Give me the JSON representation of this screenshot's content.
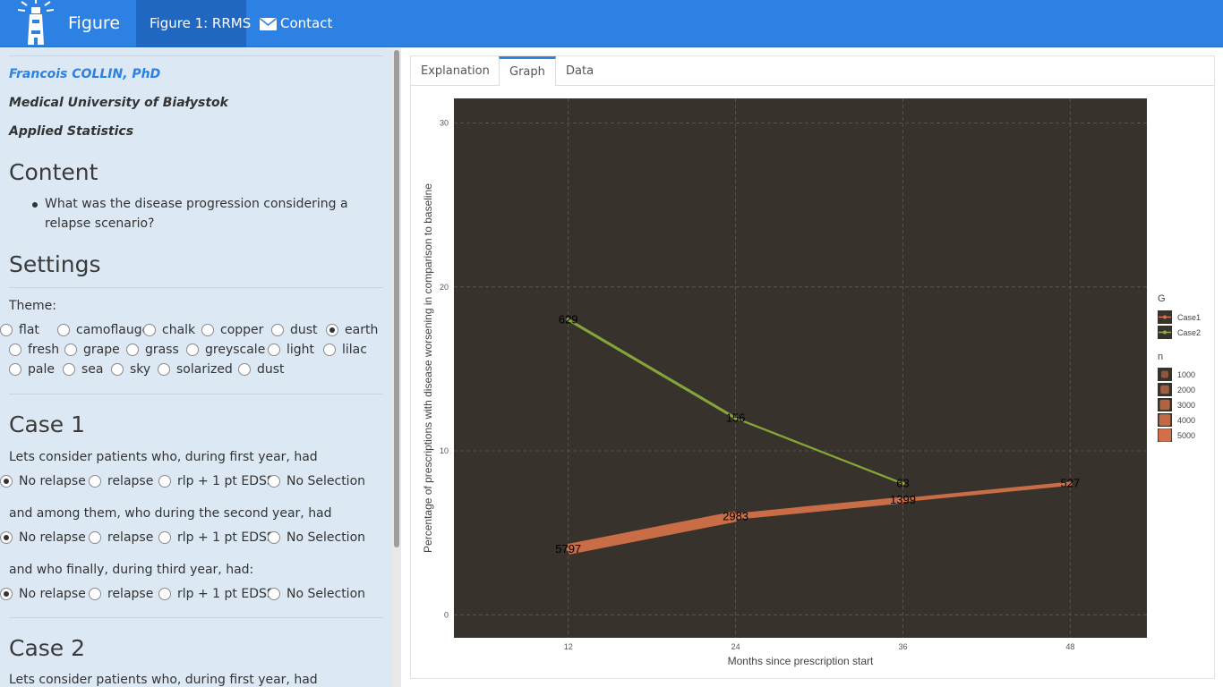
{
  "navbar": {
    "brand": "Figure",
    "active_tab": "Figure 1: RRMS",
    "contact": "Contact",
    "logo_icon": "lighthouse-icon",
    "mail_icon": "envelope-icon",
    "color": "#2c81e2"
  },
  "sidebar": {
    "author_name": "Francois COLLIN, PhD",
    "university": "Medical University of Białystok",
    "department": "Applied Statistics",
    "content_title": "Content",
    "content_item": "What was the disease progression considering a relapse scenario?",
    "settings_title": "Settings",
    "theme_label": "Theme:",
    "themes": [
      "flat",
      "camoflauge",
      "chalk",
      "copper",
      "dust",
      "earth",
      "fresh",
      "grape",
      "grass",
      "greyscale",
      "light",
      "lilac",
      "pale",
      "sea",
      "sky",
      "solarized",
      "dust"
    ],
    "selected_theme": "earth",
    "case1_title": "Case 1",
    "case1_q1": "Lets consider patients who, during first year, had",
    "case1_q2": "and among them, who during the second year, had",
    "case1_q3": "and who finally, during third year, had:",
    "case2_title": "Case 2",
    "case2_q1": "Lets consider patients who, during first year, had",
    "options": [
      "No relapse",
      "relapse",
      "rlp + 1 pt EDSS",
      "No Selection"
    ],
    "selected_option": "No relapse"
  },
  "tabs": [
    "Explanation",
    "Graph",
    "Data"
  ],
  "active_tab": "Graph",
  "chart_data": {
    "type": "line",
    "x": [
      12,
      24,
      36,
      48
    ],
    "xlabel": "Months since prescription start",
    "ylabel": "Percentage of prescriptions with disease worsening in comparison to baseline",
    "xticks": [
      12,
      24,
      36,
      48
    ],
    "yticks": [
      0,
      10,
      20,
      30
    ],
    "xlim": [
      3.8,
      53.5
    ],
    "ylim": [
      -1.4,
      31.5
    ],
    "grid": true,
    "legend_position": "right",
    "legend_color_title": "G",
    "legend_size_title": "n",
    "legend_size_values": [
      1000,
      2000,
      3000,
      4000,
      5000
    ],
    "panel_background": "#38322d",
    "series": [
      {
        "name": "Case1",
        "color": "#d9744a",
        "x": [
          12,
          24,
          36,
          48
        ],
        "values": [
          4,
          6,
          7,
          8
        ],
        "n": [
          5797,
          2983,
          1399,
          527
        ],
        "labels": [
          "5797",
          "2983",
          "1399",
          "527"
        ]
      },
      {
        "name": "Case2",
        "color": "#8db33a",
        "x": [
          12,
          24,
          36
        ],
        "values": [
          18,
          12,
          8
        ],
        "n": [
          629,
          156,
          63
        ],
        "labels": [
          "629",
          "156",
          "63"
        ]
      }
    ]
  }
}
